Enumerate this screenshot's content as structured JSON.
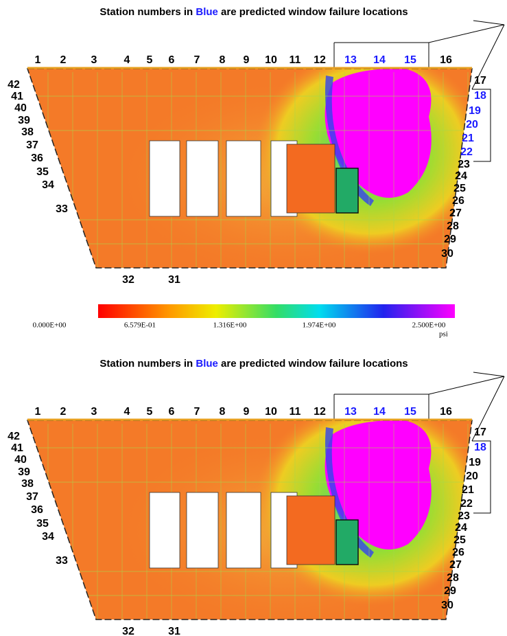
{
  "panels": [
    {
      "caption": {
        "before": "Station numbers in ",
        "blue": "Blue",
        "after": " are predicted window failure locations"
      },
      "stations": [
        {
          "label": "1",
          "color": "black"
        },
        {
          "label": "2",
          "color": "black"
        },
        {
          "label": "3",
          "color": "black"
        },
        {
          "label": "4",
          "color": "black"
        },
        {
          "label": "5",
          "color": "black"
        },
        {
          "label": "6",
          "color": "black"
        },
        {
          "label": "7",
          "color": "black"
        },
        {
          "label": "8",
          "color": "black"
        },
        {
          "label": "9",
          "color": "black"
        },
        {
          "label": "10",
          "color": "black"
        },
        {
          "label": "11",
          "color": "black"
        },
        {
          "label": "12",
          "color": "black"
        },
        {
          "label": "13",
          "color": "blue"
        },
        {
          "label": "14",
          "color": "blue"
        },
        {
          "label": "15",
          "color": "blue"
        },
        {
          "label": "16",
          "color": "black"
        },
        {
          "label": "17",
          "color": "black"
        },
        {
          "label": "18",
          "color": "blue"
        },
        {
          "label": "19",
          "color": "blue"
        },
        {
          "label": "20",
          "color": "blue"
        },
        {
          "label": "21",
          "color": "blue"
        },
        {
          "label": "22",
          "color": "blue"
        },
        {
          "label": "23",
          "color": "black"
        },
        {
          "label": "24",
          "color": "black"
        },
        {
          "label": "25",
          "color": "black"
        },
        {
          "label": "26",
          "color": "black"
        },
        {
          "label": "27",
          "color": "black"
        },
        {
          "label": "28",
          "color": "black"
        },
        {
          "label": "29",
          "color": "black"
        },
        {
          "label": "30",
          "color": "black"
        },
        {
          "label": "31",
          "color": "black"
        },
        {
          "label": "32",
          "color": "black"
        },
        {
          "label": "33",
          "color": "black"
        },
        {
          "label": "34",
          "color": "black"
        },
        {
          "label": "35",
          "color": "black"
        },
        {
          "label": "36",
          "color": "black"
        },
        {
          "label": "37",
          "color": "black"
        },
        {
          "label": "38",
          "color": "black"
        },
        {
          "label": "39",
          "color": "black"
        },
        {
          "label": "40",
          "color": "black"
        },
        {
          "label": "41",
          "color": "black"
        },
        {
          "label": "42",
          "color": "black"
        }
      ]
    },
    {
      "caption": {
        "before": "Station numbers in ",
        "blue": "Blue",
        "after": " are predicted window failure locations"
      },
      "stations": [
        {
          "label": "1",
          "color": "black"
        },
        {
          "label": "2",
          "color": "black"
        },
        {
          "label": "3",
          "color": "black"
        },
        {
          "label": "4",
          "color": "black"
        },
        {
          "label": "5",
          "color": "black"
        },
        {
          "label": "6",
          "color": "black"
        },
        {
          "label": "7",
          "color": "black"
        },
        {
          "label": "8",
          "color": "black"
        },
        {
          "label": "9",
          "color": "black"
        },
        {
          "label": "10",
          "color": "black"
        },
        {
          "label": "11",
          "color": "black"
        },
        {
          "label": "12",
          "color": "black"
        },
        {
          "label": "13",
          "color": "blue"
        },
        {
          "label": "14",
          "color": "blue"
        },
        {
          "label": "15",
          "color": "blue"
        },
        {
          "label": "16",
          "color": "black"
        },
        {
          "label": "17",
          "color": "black"
        },
        {
          "label": "18",
          "color": "blue"
        },
        {
          "label": "19",
          "color": "black"
        },
        {
          "label": "20",
          "color": "black"
        },
        {
          "label": "21",
          "color": "black"
        },
        {
          "label": "22",
          "color": "black"
        },
        {
          "label": "23",
          "color": "black"
        },
        {
          "label": "24",
          "color": "black"
        },
        {
          "label": "25",
          "color": "black"
        },
        {
          "label": "26",
          "color": "black"
        },
        {
          "label": "27",
          "color": "black"
        },
        {
          "label": "28",
          "color": "black"
        },
        {
          "label": "29",
          "color": "black"
        },
        {
          "label": "30",
          "color": "black"
        },
        {
          "label": "31",
          "color": "black"
        },
        {
          "label": "32",
          "color": "black"
        },
        {
          "label": "33",
          "color": "black"
        },
        {
          "label": "34",
          "color": "black"
        },
        {
          "label": "35",
          "color": "black"
        },
        {
          "label": "36",
          "color": "black"
        },
        {
          "label": "37",
          "color": "black"
        },
        {
          "label": "38",
          "color": "black"
        },
        {
          "label": "39",
          "color": "black"
        },
        {
          "label": "40",
          "color": "black"
        },
        {
          "label": "41",
          "color": "black"
        },
        {
          "label": "42",
          "color": "black"
        }
      ]
    }
  ],
  "colorbar": {
    "labels": [
      "0.000E+00",
      "6.579E-01",
      "1.316E+00",
      "1.974E+00",
      "2.500E+00"
    ],
    "unit": "psi"
  }
}
